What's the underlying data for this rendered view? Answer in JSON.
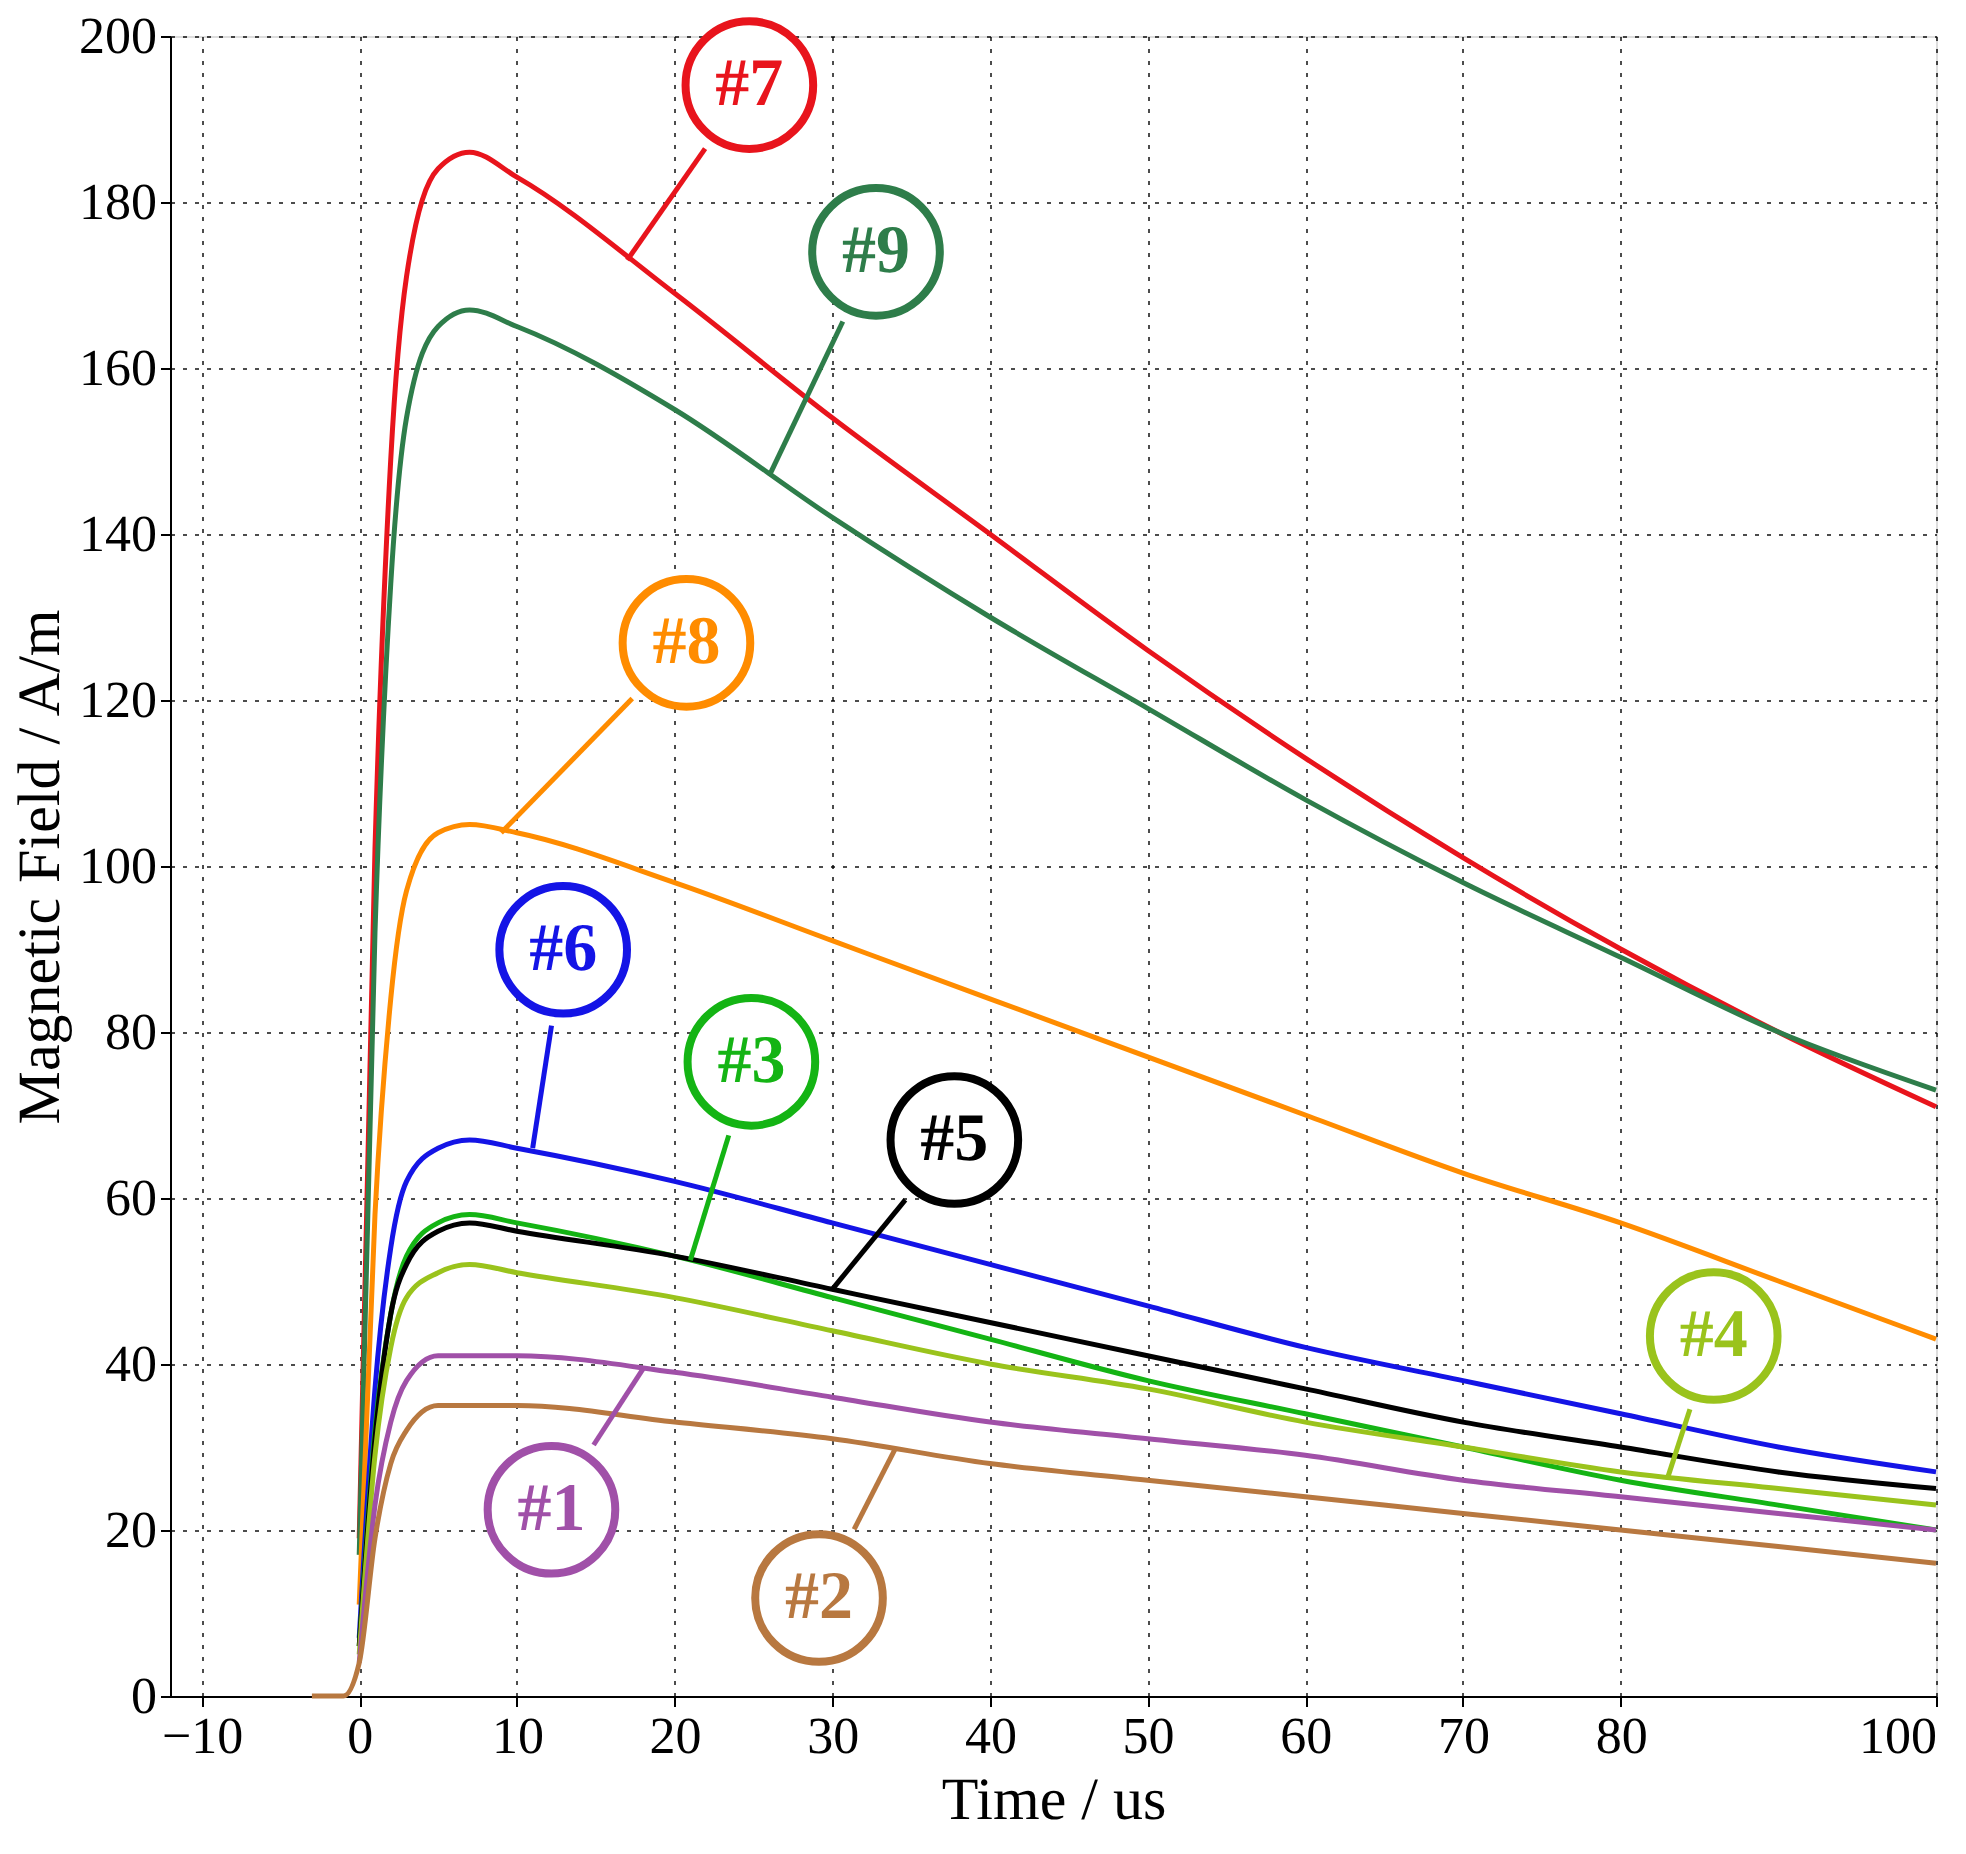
{
  "chart_data": {
    "type": "line",
    "xlabel": "Time / us",
    "ylabel": "Magnetic Field / A/m",
    "x": [
      -3,
      -1,
      0,
      1,
      2,
      3,
      5,
      7,
      10,
      20,
      30,
      40,
      50,
      60,
      70,
      80,
      90,
      100
    ],
    "xlim": [
      -12,
      100
    ],
    "xticks": [
      -10,
      0,
      10,
      20,
      30,
      40,
      50,
      60,
      70,
      80,
      100
    ],
    "ylim": [
      0,
      200
    ],
    "yticks": [
      0,
      20,
      40,
      60,
      80,
      100,
      120,
      140,
      160,
      180,
      200
    ],
    "grid": true,
    "marker": "none",
    "line_style": "solid",
    "series": [
      {
        "color": "#e8141c",
        "values": [
          null,
          null,
          19,
          102,
          149,
          171,
          184,
          186,
          183,
          169,
          154,
          140,
          126,
          113,
          101,
          90,
          80,
          71
        ]
      },
      {
        "color": "#2e7d4a",
        "values": [
          null,
          null,
          17,
          92,
          134,
          154,
          165,
          167,
          165,
          155,
          142,
          130,
          119,
          108,
          98,
          89,
          80,
          73
        ]
      },
      {
        "color": "#ff8c00",
        "values": [
          null,
          null,
          11,
          58,
          84,
          97,
          104,
          105,
          104,
          98,
          91,
          84,
          77,
          70,
          63,
          57,
          50,
          43
        ]
      },
      {
        "color": "#1414e6",
        "values": [
          null,
          null,
          7,
          37,
          54,
          62,
          66,
          67,
          66,
          62,
          57,
          52,
          47,
          42,
          38,
          34,
          30,
          27
        ]
      },
      {
        "color": "#14b414",
        "values": [
          null,
          null,
          6,
          32,
          46,
          53,
          57,
          58,
          57,
          53,
          48,
          43,
          38,
          34,
          30,
          26,
          23,
          20
        ]
      },
      {
        "color": "#000000",
        "values": [
          null,
          null,
          6,
          31,
          46,
          52,
          56,
          57,
          56,
          53,
          49,
          45,
          41,
          37,
          33,
          30,
          27,
          25
        ]
      },
      {
        "color": "#9ac31c",
        "values": [
          null,
          null,
          5,
          29,
          42,
          48,
          51,
          52,
          51,
          48,
          44,
          40,
          37,
          33,
          30,
          27,
          25,
          23
        ]
      },
      {
        "color": "#a050a8",
        "values": [
          null,
          null,
          4,
          23,
          33,
          38,
          41,
          41,
          41,
          39,
          36,
          33,
          31,
          29,
          26,
          24,
          22,
          20
        ]
      },
      {
        "color": "#b87840",
        "values": [
          0,
          0,
          4,
          19,
          28,
          32,
          35,
          35,
          35,
          33,
          31,
          28,
          26,
          24,
          22,
          20,
          18,
          16
        ]
      }
    ],
    "annotations": [
      {
        "text": "#7",
        "x": 17,
        "y": 173
      },
      {
        "text": "#9",
        "x": 26,
        "y": 147
      },
      {
        "text": "#8",
        "x": 9,
        "y": 104
      },
      {
        "text": "#6",
        "x": 11,
        "y": 66
      },
      {
        "text": "#3",
        "x": 21,
        "y": 52.5
      },
      {
        "text": "#5",
        "x": 30,
        "y": 49
      },
      {
        "text": "#4",
        "x": 83,
        "y": 26.4
      },
      {
        "text": "#1",
        "x": 18,
        "y": 39.4
      },
      {
        "text": "#2",
        "x": 34,
        "y": 29.8
      }
    ]
  }
}
